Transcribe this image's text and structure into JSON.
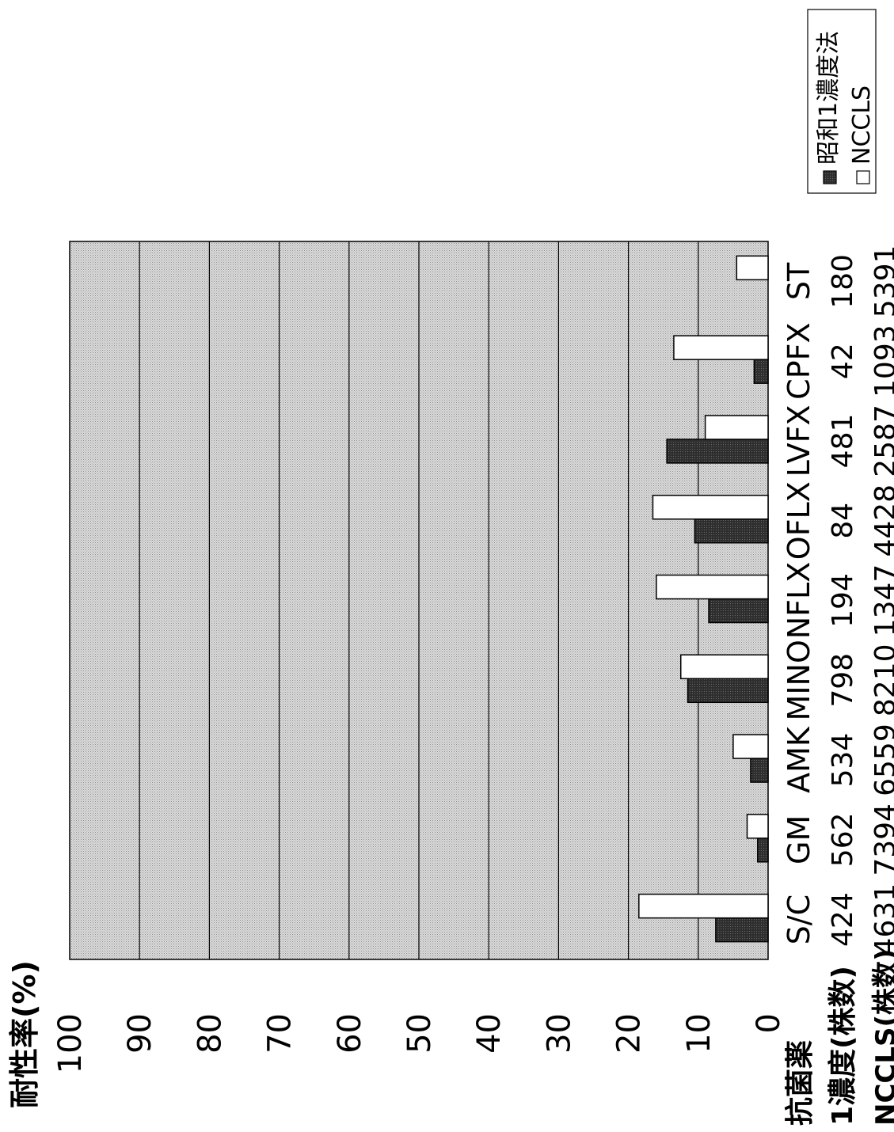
{
  "chart_data": {
    "type": "bar",
    "orientation": "rotated-90",
    "ylabel": "耐性率(%)",
    "ylim": [
      0,
      100
    ],
    "yticks": [
      0,
      10,
      20,
      30,
      40,
      50,
      60,
      70,
      80,
      90,
      100
    ],
    "grid": true,
    "legend_position": "top-right",
    "row_labels": {
      "drug": "抗菌薬",
      "count1": "1濃度(株数)",
      "count2": "NCCLS(株数)"
    },
    "categories": [
      "S/C",
      "GM",
      "AMK",
      "MINO",
      "NFLX",
      "OFLX",
      "LVFX",
      "CPFX",
      "ST"
    ],
    "counts_1concentration": [
      "424",
      "562",
      "534",
      "798",
      "194",
      "84",
      "481",
      "42",
      "180"
    ],
    "counts_nccls": [
      "4631",
      "7394",
      "6559",
      "8210",
      "1347",
      "4428",
      "2587",
      "1093",
      "5391"
    ],
    "series": [
      {
        "name": "昭和1濃度法",
        "color": "#3a3a3a",
        "values": [
          7.5,
          1.5,
          2.5,
          11.5,
          8.5,
          10.5,
          14.5,
          2.0,
          0
        ]
      },
      {
        "name": "NCCLS",
        "color": "#ffffff",
        "values": [
          18.5,
          3.0,
          5.0,
          12.5,
          16.0,
          16.5,
          9.0,
          13.5,
          4.5
        ]
      }
    ],
    "plot_background": "#d2d2d2"
  }
}
